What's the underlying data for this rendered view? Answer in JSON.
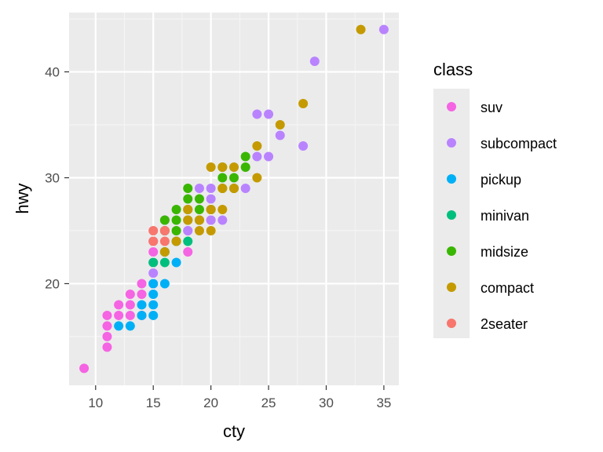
{
  "chart_data": {
    "type": "scatter",
    "xlabel": "cty",
    "ylabel": "hwy",
    "xlim": [
      7.7,
      36.3
    ],
    "ylim": [
      10.4,
      45.6
    ],
    "xticks": [
      10,
      15,
      20,
      25,
      30,
      35
    ],
    "yticks": [
      20,
      30,
      40
    ],
    "grid": true,
    "legend": {
      "title": "class",
      "position": "right"
    },
    "colors": {
      "panel": "#ebebeb",
      "grid_major": "#ffffff",
      "grid_minor": "#f5f5f5",
      "tick": "#333333"
    },
    "series": [
      {
        "name": "suv",
        "color": "#f564e3",
        "points": [
          [
            9,
            12
          ],
          [
            11,
            14
          ],
          [
            11,
            15
          ],
          [
            11,
            16
          ],
          [
            11,
            17
          ],
          [
            12,
            17
          ],
          [
            12,
            18
          ],
          [
            13,
            17
          ],
          [
            13,
            18
          ],
          [
            13,
            19
          ],
          [
            14,
            17
          ],
          [
            14,
            19
          ],
          [
            14,
            20
          ],
          [
            15,
            20
          ],
          [
            15,
            22
          ],
          [
            15,
            23
          ],
          [
            16,
            25
          ],
          [
            18,
            23
          ],
          [
            18,
            25
          ],
          [
            20,
            26
          ]
        ]
      },
      {
        "name": "subcompact",
        "color": "#b983ff",
        "points": [
          [
            15,
            21
          ],
          [
            15,
            24
          ],
          [
            16,
            26
          ],
          [
            18,
            25
          ],
          [
            19,
            26
          ],
          [
            19,
            29
          ],
          [
            20,
            26
          ],
          [
            20,
            27
          ],
          [
            20,
            28
          ],
          [
            20,
            29
          ],
          [
            21,
            26
          ],
          [
            23,
            29
          ],
          [
            24,
            32
          ],
          [
            24,
            36
          ],
          [
            25,
            32
          ],
          [
            25,
            36
          ],
          [
            26,
            34
          ],
          [
            28,
            33
          ],
          [
            29,
            41
          ],
          [
            35,
            44
          ]
        ]
      },
      {
        "name": "pickup",
        "color": "#00b0f6",
        "points": [
          [
            12,
            16
          ],
          [
            13,
            16
          ],
          [
            14,
            17
          ],
          [
            14,
            18
          ],
          [
            15,
            17
          ],
          [
            15,
            18
          ],
          [
            15,
            19
          ],
          [
            15,
            20
          ],
          [
            16,
            20
          ],
          [
            17,
            22
          ]
        ]
      },
      {
        "name": "minivan",
        "color": "#00bf7d",
        "points": [
          [
            15,
            22
          ],
          [
            16,
            22
          ],
          [
            16,
            23
          ],
          [
            17,
            24
          ],
          [
            18,
            24
          ]
        ]
      },
      {
        "name": "midsize",
        "color": "#39b600",
        "points": [
          [
            16,
            25
          ],
          [
            16,
            26
          ],
          [
            17,
            25
          ],
          [
            17,
            26
          ],
          [
            17,
            27
          ],
          [
            18,
            26
          ],
          [
            18,
            27
          ],
          [
            18,
            28
          ],
          [
            18,
            29
          ],
          [
            19,
            26
          ],
          [
            19,
            27
          ],
          [
            19,
            28
          ],
          [
            20,
            27
          ],
          [
            21,
            29
          ],
          [
            21,
            30
          ],
          [
            21,
            31
          ],
          [
            22,
            29
          ],
          [
            22,
            30
          ],
          [
            23,
            31
          ],
          [
            23,
            32
          ]
        ]
      },
      {
        "name": "compact",
        "color": "#c49a00",
        "points": [
          [
            16,
            23
          ],
          [
            17,
            24
          ],
          [
            18,
            26
          ],
          [
            18,
            27
          ],
          [
            19,
            25
          ],
          [
            19,
            26
          ],
          [
            20,
            25
          ],
          [
            20,
            27
          ],
          [
            20,
            31
          ],
          [
            21,
            27
          ],
          [
            21,
            29
          ],
          [
            21,
            31
          ],
          [
            22,
            29
          ],
          [
            22,
            31
          ],
          [
            24,
            30
          ],
          [
            24,
            33
          ],
          [
            26,
            35
          ],
          [
            28,
            37
          ],
          [
            33,
            44
          ]
        ]
      },
      {
        "name": "2seater",
        "color": "#f8766d",
        "points": [
          [
            15,
            24
          ],
          [
            15,
            25
          ],
          [
            16,
            24
          ],
          [
            16,
            25
          ]
        ]
      }
    ]
  }
}
